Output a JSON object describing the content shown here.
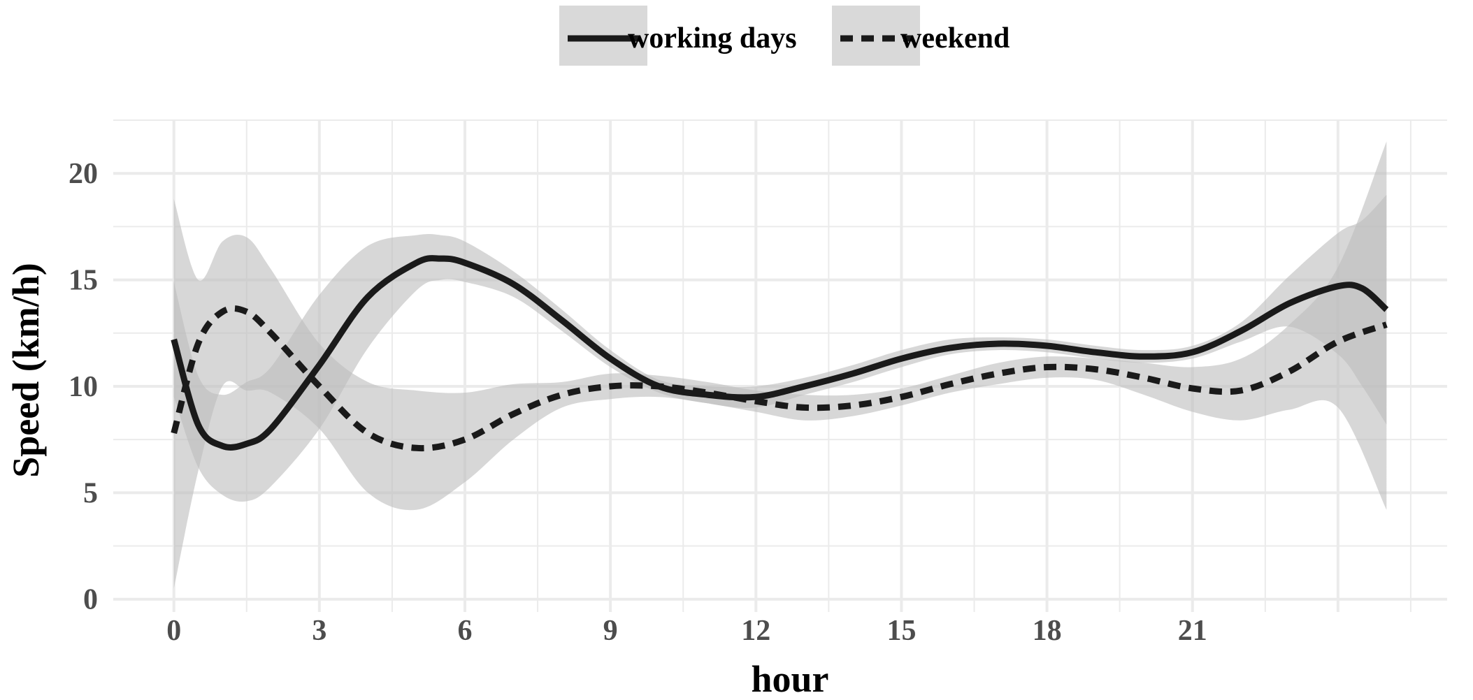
{
  "chart_data": {
    "type": "line",
    "title": "",
    "xlabel": "hour",
    "ylabel": "Speed (km/h)",
    "xlim": [
      -1.25,
      26.25
    ],
    "ylim": [
      -0.6,
      22.5
    ],
    "x_ticks": [
      0,
      3,
      6,
      9,
      12,
      15,
      18,
      21
    ],
    "x_tick_labels": [
      "0",
      "3",
      "6",
      "9",
      "12",
      "15",
      "18",
      "21"
    ],
    "y_ticks": [
      0,
      5,
      10,
      15,
      20
    ],
    "y_tick_labels": [
      "0",
      "5",
      "10",
      "15",
      "20"
    ],
    "grid": true,
    "legend_position": "top",
    "colors": {
      "line": "#1a1a1a",
      "ribbon": "#bdbdbd",
      "grid": "#ebebeb",
      "legend_key": "#d9d9d9"
    },
    "series": [
      {
        "name": "working days",
        "line_style": "solid",
        "x": [
          0,
          0.5,
          1,
          1.5,
          2,
          3,
          4,
          5,
          5.5,
          6,
          7,
          8,
          9,
          10,
          11,
          12,
          13,
          14,
          15,
          16,
          17,
          18,
          19,
          20,
          21,
          22,
          23,
          24,
          24.5,
          25
        ],
        "y": [
          12.2,
          8.2,
          7.2,
          7.3,
          8.0,
          11.0,
          14.2,
          15.8,
          16.0,
          15.8,
          14.8,
          13.1,
          11.3,
          10.0,
          9.6,
          9.5,
          10.0,
          10.6,
          11.3,
          11.8,
          12.0,
          11.9,
          11.6,
          11.4,
          11.6,
          12.6,
          13.9,
          14.7,
          14.6,
          13.6
        ],
        "lower": [
          9.5,
          6.2,
          4.9,
          4.6,
          5.3,
          8.0,
          11.8,
          14.5,
          15.0,
          14.9,
          14.2,
          12.6,
          10.9,
          9.7,
          9.2,
          9.0,
          9.6,
          10.2,
          10.9,
          11.5,
          11.7,
          11.6,
          11.3,
          11.1,
          11.3,
          12.1,
          12.8,
          11.5,
          10.0,
          8.2
        ],
        "upper": [
          14.9,
          10.5,
          9.6,
          10.2,
          10.9,
          14.3,
          16.6,
          17.1,
          17.1,
          16.8,
          15.4,
          13.6,
          11.7,
          10.3,
          10.0,
          10.0,
          10.4,
          11.0,
          11.7,
          12.2,
          12.3,
          12.2,
          11.9,
          11.7,
          11.9,
          13.0,
          15.2,
          17.2,
          17.8,
          19.0
        ]
      },
      {
        "name": "weekend",
        "line_style": "dashed",
        "x": [
          0,
          0.5,
          1,
          1.5,
          2,
          3,
          4,
          5,
          6,
          7,
          8,
          9,
          10,
          11,
          12,
          13,
          14,
          15,
          16,
          17,
          18,
          19,
          20,
          21,
          22,
          23,
          24,
          25
        ],
        "y": [
          7.8,
          12.0,
          13.5,
          13.5,
          12.5,
          10.0,
          7.8,
          7.1,
          7.5,
          8.7,
          9.6,
          10.0,
          10.0,
          9.7,
          9.3,
          9.0,
          9.1,
          9.5,
          10.1,
          10.6,
          10.9,
          10.8,
          10.4,
          9.9,
          9.8,
          10.7,
          12.1,
          12.9
        ],
        "lower": [
          0.5,
          6.0,
          10.0,
          9.8,
          9.7,
          8.0,
          5.0,
          4.2,
          5.5,
          7.5,
          9.0,
          9.4,
          9.5,
          9.2,
          8.8,
          8.4,
          8.6,
          9.1,
          9.7,
          10.1,
          10.4,
          10.3,
          9.6,
          8.8,
          8.4,
          8.9,
          9.0,
          4.2
        ],
        "upper": [
          18.8,
          15.0,
          16.8,
          17.0,
          15.5,
          12.0,
          10.2,
          9.8,
          9.7,
          10.1,
          10.2,
          10.6,
          10.5,
          10.2,
          9.8,
          9.6,
          9.6,
          9.9,
          10.5,
          11.1,
          11.4,
          11.3,
          11.1,
          10.9,
          11.3,
          12.9,
          15.6,
          21.5
        ]
      }
    ]
  }
}
